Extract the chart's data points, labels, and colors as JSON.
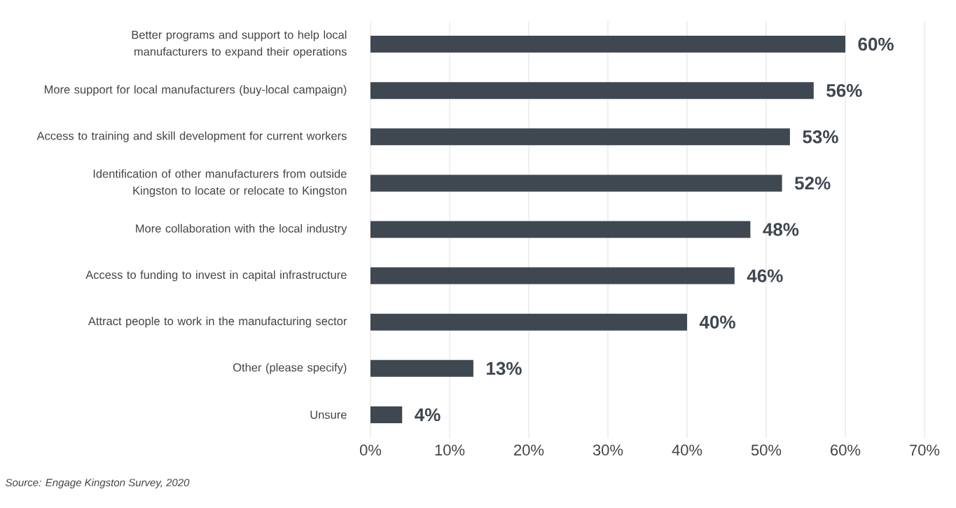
{
  "chart_data": {
    "type": "bar",
    "orientation": "horizontal",
    "categories": [
      "Better programs and support to help local manufacturers to expand their operations",
      "More support for local manufacturers (buy-local campaign)",
      "Access to training and skill development for current workers",
      "Identification of other manufacturers from outside Kingston to locate or relocate to Kingston",
      "More collaboration with the local industry",
      "Access to funding to invest in capital infrastructure",
      "Attract people to work in the manufacturing sector",
      "Other (please specify)",
      "Unsure"
    ],
    "values": [
      60,
      56,
      53,
      52,
      48,
      46,
      40,
      13,
      4
    ],
    "value_labels": [
      "60%",
      "56%",
      "53%",
      "52%",
      "48%",
      "46%",
      "40%",
      "13%",
      "4%"
    ],
    "color": "#3f4751",
    "xlim": [
      0,
      70
    ],
    "xticks": [
      {
        "value": 0,
        "label": "0%"
      },
      {
        "value": 10,
        "label": "10%"
      },
      {
        "value": 20,
        "label": "20%"
      },
      {
        "value": 30,
        "label": "30%"
      },
      {
        "value": 40,
        "label": "40%"
      },
      {
        "value": 50,
        "label": "50%"
      },
      {
        "value": 60,
        "label": "60%"
      },
      {
        "value": 70,
        "label": "70%"
      }
    ],
    "grid": "x",
    "annotations": [
      "Source: Engage Kingston Survey, 2020"
    ]
  }
}
